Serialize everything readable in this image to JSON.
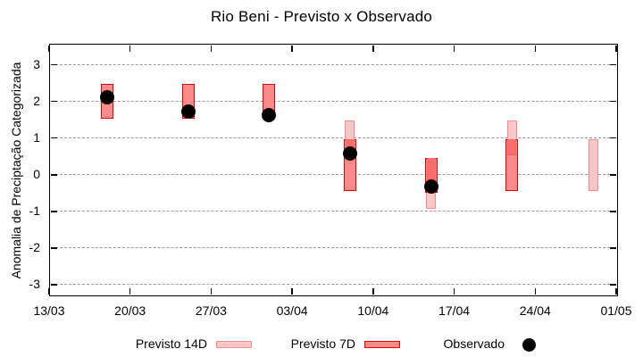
{
  "chart_data": {
    "type": "range-bar",
    "title": "Rio Beni - Previsto x Observado",
    "ylabel": "Anomalia de Preciptação Categorizada",
    "xlabel": "",
    "x_tick_labels": [
      "13/03",
      "20/03",
      "27/03",
      "03/04",
      "10/04",
      "17/04",
      "24/04",
      "01/05"
    ],
    "x_tick_days": [
      0,
      7,
      14,
      21,
      28,
      35,
      42,
      49
    ],
    "x_range_days": [
      0,
      49
    ],
    "y_ticks": [
      3,
      2,
      1,
      0,
      -1,
      -2,
      -3
    ],
    "ylim": [
      -3.28,
      3.55
    ],
    "grid": "horizontal-dashed",
    "legend_position": "bottom-outside",
    "groups": [
      {
        "date": "18/03",
        "day": 5,
        "previsto_14d": null,
        "previsto_7d": [
          1.5,
          2.45
        ],
        "observado": 2.1
      },
      {
        "date": "25/03",
        "day": 12,
        "previsto_14d": null,
        "previsto_7d": [
          1.5,
          2.45
        ],
        "observado": 1.7
      },
      {
        "date": "01/04",
        "day": 19,
        "previsto_14d": null,
        "previsto_7d": [
          1.5,
          2.45
        ],
        "observado": 1.6
      },
      {
        "date": "08/04",
        "day": 26,
        "previsto_14d": [
          0.5,
          1.45
        ],
        "previsto_7d": [
          -0.45,
          0.95
        ],
        "observado": 0.55
      },
      {
        "date": "15/04",
        "day": 33,
        "previsto_14d": [
          -0.95,
          0.45
        ],
        "previsto_7d": [
          -0.5,
          0.45
        ],
        "observado": -0.35
      },
      {
        "date": "22/04",
        "day": 40,
        "previsto_14d": [
          0.5,
          1.45
        ],
        "previsto_7d": [
          -0.45,
          0.95
        ],
        "observado": null
      },
      {
        "date": "29/04",
        "day": 47,
        "previsto_14d": [
          -0.45,
          0.95
        ],
        "previsto_7d": null,
        "observado": null
      }
    ],
    "colors": {
      "previsto_14d_fill": "#fcc6c6",
      "previsto_14d_border": "#f28e8e",
      "previsto_7d_fill": "#fb8a8a",
      "previsto_7d_border": "#e10000",
      "overlap_fill": "#f96d6d",
      "overlap_divider": "#e85f5f",
      "observado": "#000000",
      "grid": "#9a9a9a",
      "axis": "#000000"
    }
  },
  "legend": {
    "previsto_14d_label": "Previsto 14D",
    "previsto_7d_label": "Previsto 7D",
    "observado_label": "Observado"
  }
}
